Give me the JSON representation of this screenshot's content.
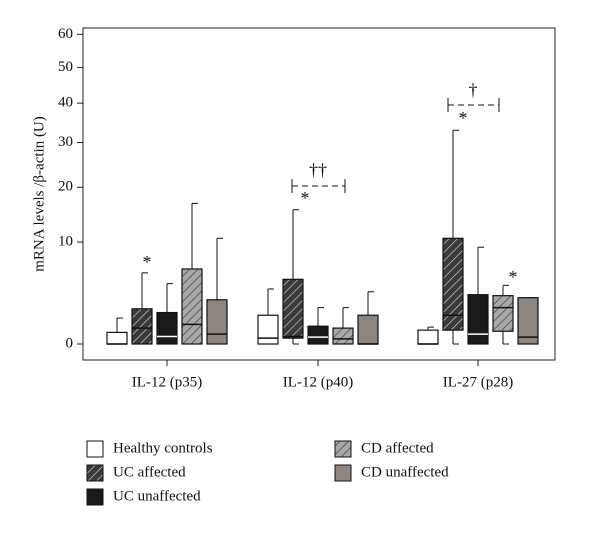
{
  "chart_data": {
    "type": "box",
    "y_label": "mRNA levels /β-actin (U)",
    "categories": [
      "IL-12 (p35)",
      "IL-12 (p40)",
      "IL-27 (p28)"
    ],
    "ylim": [
      0,
      62
    ],
    "yticks": [
      0,
      10,
      20,
      30,
      40,
      50,
      60
    ],
    "series": [
      {
        "name": "Healthy controls",
        "color": "#ffffff",
        "hatch": false,
        "min": [
          0,
          0,
          0
        ],
        "q1": [
          0,
          0,
          0
        ],
        "median": [
          0,
          0.1,
          0
        ],
        "q3": [
          0.3,
          1.3,
          0.4
        ],
        "max": [
          1.1,
          3.7,
          0.55
        ]
      },
      {
        "name": "UC affected",
        "color": "#3a3a3a",
        "hatch": true,
        "min": [
          0,
          0,
          0
        ],
        "q1": [
          0,
          0.1,
          0.4
        ],
        "median": [
          0.5,
          0.15,
          1.3
        ],
        "q3": [
          1.8,
          4.8,
          10.6
        ],
        "max": [
          5.6,
          15.6,
          33
        ]
      },
      {
        "name": "UC unaffected",
        "color": "#1a1a1a",
        "hatch": false,
        "min": [
          0,
          0,
          0
        ],
        "q1": [
          0,
          0,
          0
        ],
        "median": [
          0.15,
          0.13,
          0.23
        ],
        "q3": [
          1.5,
          0.6,
          3.1
        ],
        "max": [
          4.3,
          1.9,
          9.2
        ]
      },
      {
        "name": "CD affected",
        "color": "#a8a8a8",
        "hatch": true,
        "min": [
          0,
          0,
          0
        ],
        "q1": [
          0,
          0,
          0.35
        ],
        "median": [
          0.7,
          0.08,
          1.9
        ],
        "q3": [
          6.1,
          0.5,
          3.0
        ],
        "max": [
          16.8,
          1.9,
          4.1
        ]
      },
      {
        "name": "CD unaffected",
        "color": "#8c8580",
        "hatch": false,
        "min": [
          0,
          0,
          0
        ],
        "q1": [
          0,
          0,
          0
        ],
        "median": [
          0.23,
          0,
          0.13
        ],
        "q3": [
          2.6,
          1.3,
          2.8
        ],
        "max": [
          10.6,
          3.4,
          2.8
        ]
      }
    ],
    "annotations": [
      "*",
      "*",
      "††",
      "*",
      "†",
      "*"
    ]
  }
}
